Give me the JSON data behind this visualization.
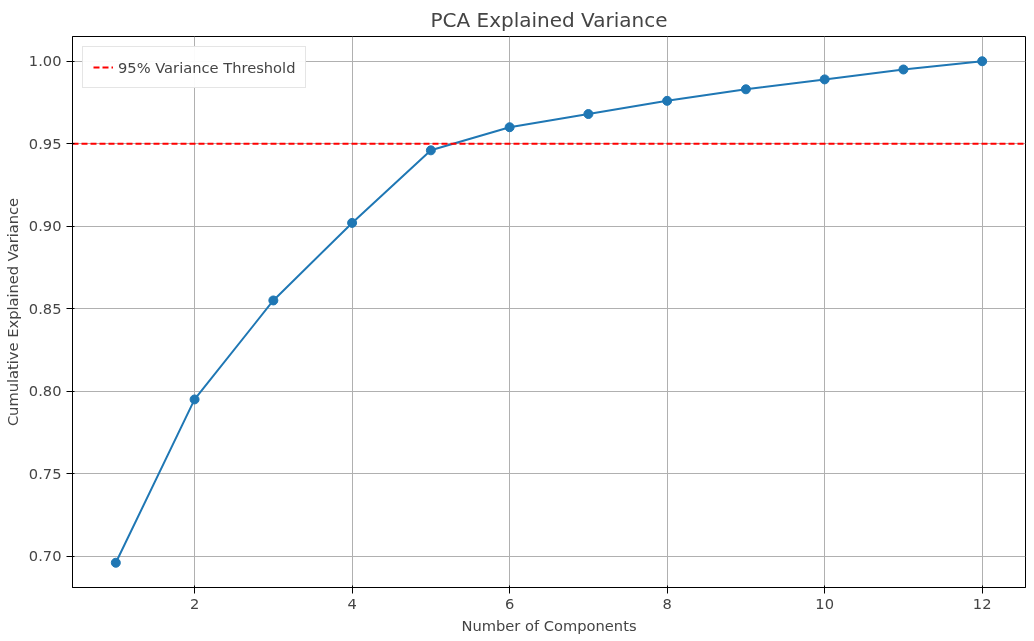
{
  "chart_data": {
    "type": "line",
    "title": "PCA Explained Variance",
    "xlabel": "Number of Components",
    "ylabel": "Cumulative Explained Variance",
    "x": [
      1,
      2,
      3,
      4,
      5,
      6,
      7,
      8,
      9,
      10,
      11,
      12
    ],
    "series": [
      {
        "color": "#1f77b4",
        "values": [
          0.696,
          0.795,
          0.855,
          0.902,
          0.946,
          0.96,
          0.968,
          0.976,
          0.983,
          0.989,
          0.995,
          1.0
        ]
      }
    ],
    "xlim": [
      0.45,
      12.55
    ],
    "ylim": [
      0.681,
      1.015
    ],
    "xticks": [
      2,
      4,
      6,
      8,
      10,
      12
    ],
    "yticks": [
      {
        "value": 0.7,
        "label": "0.70"
      },
      {
        "value": 0.75,
        "label": "0.75"
      },
      {
        "value": 0.8,
        "label": "0.80"
      },
      {
        "value": 0.85,
        "label": "0.85"
      },
      {
        "value": 0.9,
        "label": "0.90"
      },
      {
        "value": 0.95,
        "label": "0.95"
      },
      {
        "value": 1.0,
        "label": "1.00"
      }
    ],
    "ref_lines": [
      {
        "axis": "y",
        "value": 0.95,
        "label": "95% Variance Threshold",
        "color": "#ff0000",
        "line_style": "dashed"
      }
    ],
    "grid": true,
    "legend": "top left",
    "marker": "circle",
    "line_style": "solid"
  }
}
